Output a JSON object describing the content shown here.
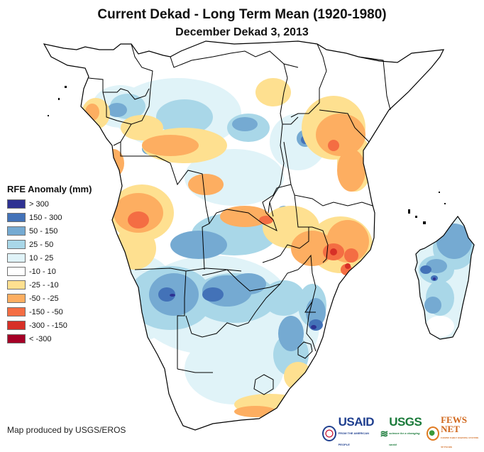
{
  "header": {
    "title": "Current Dekad - Long Term Mean (1920-1980)",
    "subtitle": "December Dekad 3, 2013"
  },
  "legend": {
    "title": "RFE Anomaly (mm)",
    "items": [
      {
        "label": "> 300",
        "color": "#2e3192"
      },
      {
        "label": "150 - 300",
        "color": "#4372b8"
      },
      {
        "label": "50 - 150",
        "color": "#75aad2"
      },
      {
        "label": "25 - 50",
        "color": "#a9d7e8"
      },
      {
        "label": "10 - 25",
        "color": "#e0f3f8"
      },
      {
        "label": "-10 - 10",
        "color": "#ffffff"
      },
      {
        "label": "-25 - -10",
        "color": "#fee090"
      },
      {
        "label": "-50 - -25",
        "color": "#fdae61"
      },
      {
        "label": "-150 - -50",
        "color": "#f46d43"
      },
      {
        "label": "-300 - -150",
        "color": "#d73027"
      },
      {
        "label": "< -300",
        "color": "#a50026"
      }
    ]
  },
  "footer": {
    "credit": "Map produced by USGS/EROS",
    "logos": {
      "usaid": "USAID",
      "usaid_tagline": "FROM THE AMERICAN PEOPLE",
      "usgs": "USGS",
      "usgs_tagline": "science for a changing world",
      "fews": "FEWS NET",
      "fews_tagline": "FAMINE EARLY WARNING SYSTEMS NETWORK"
    }
  },
  "map": {
    "region": "Southern and Central/East Africa",
    "variable": "Rainfall estimate anomaly",
    "units": "mm"
  }
}
